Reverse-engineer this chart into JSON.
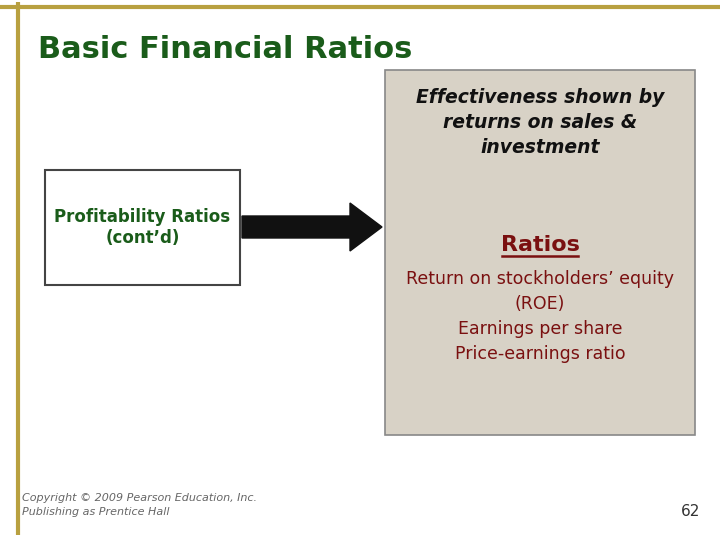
{
  "title": "Basic Financial Ratios",
  "title_color": "#1a5c1a",
  "title_fontsize": 22,
  "background_color": "#ffffff",
  "border_color": "#b8a040",
  "left_box_text": "Profitability Ratios\n(cont’d)",
  "left_box_text_color": "#1a5c1a",
  "left_box_bg": "#ffffff",
  "left_box_border": "#444444",
  "right_box_bg": "#d8d2c6",
  "right_box_border": "#888888",
  "effectiveness_text": "Effectiveness shown by\nreturns on sales &\ninvestment",
  "effectiveness_color": "#111111",
  "ratios_label": "Ratios",
  "ratios_color": "#7a1010",
  "ratios_items": "Return on stockholders’ equity\n(ROE)\nEarnings per share\nPrice-earnings ratio",
  "ratios_items_color": "#7a1010",
  "arrow_color": "#111111",
  "copyright_text": "Copyright © 2009 Pearson Education, Inc.\nPublishing as Prentice Hall",
  "copyright_color": "#666666",
  "page_number": "62",
  "page_number_color": "#333333",
  "fig_width": 7.2,
  "fig_height": 5.4,
  "dpi": 100
}
